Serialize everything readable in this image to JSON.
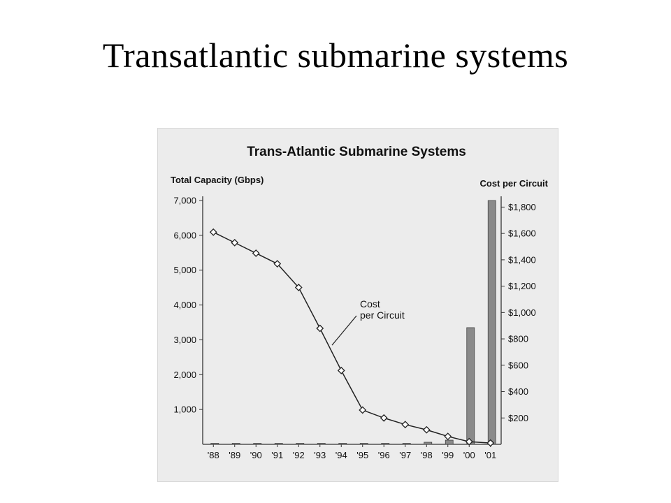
{
  "slide": {
    "title": "Transatlantic submarine systems"
  },
  "colors": {
    "bar": "#8a8a8a",
    "line": "#222222",
    "marker_fill": "#ffffff",
    "axis": "#333333",
    "text": "#111111",
    "figure_bg": "#ececec"
  },
  "chart_data": {
    "type": "bar",
    "title": "Trans-Atlantic Submarine Systems",
    "categories": [
      "'88",
      "'89",
      "'90",
      "'91",
      "'92",
      "'93",
      "'94",
      "'95",
      "'96",
      "'97",
      "'98",
      "'99",
      "'00",
      "'01"
    ],
    "y_left": {
      "label": "Total Capacity (Gbps)",
      "range": [
        0,
        7000
      ],
      "ticks": [
        1000,
        2000,
        3000,
        4000,
        5000,
        6000,
        7000
      ],
      "tick_labels": [
        "1,000",
        "2,000",
        "3,000",
        "4,000",
        "5,000",
        "6,000",
        "7,000"
      ]
    },
    "y_right": {
      "label": "Cost per Circuit",
      "range": [
        0,
        1850
      ],
      "ticks": [
        200,
        400,
        600,
        800,
        1000,
        1200,
        1400,
        1600,
        1800
      ],
      "tick_labels": [
        "$200",
        "$400",
        "$600",
        "$800",
        "$1,000",
        "$1,200",
        "$1,400",
        "$1,600",
        "$1,800"
      ]
    },
    "series": [
      {
        "type": "bar",
        "axis": "left",
        "values": [
          5,
          5,
          5,
          5,
          10,
          10,
          20,
          20,
          30,
          30,
          60,
          120,
          3350,
          7000
        ]
      },
      {
        "name": "Cost per Circuit",
        "type": "line",
        "axis": "right",
        "values": [
          1610,
          1530,
          1450,
          1370,
          1190,
          880,
          560,
          260,
          200,
          150,
          110,
          60,
          20,
          10
        ]
      }
    ],
    "annotations": [
      {
        "text_lines": [
          "Cost",
          "per Circuit"
        ],
        "points_to": "Cost per Circuit"
      }
    ],
    "grid": false
  }
}
